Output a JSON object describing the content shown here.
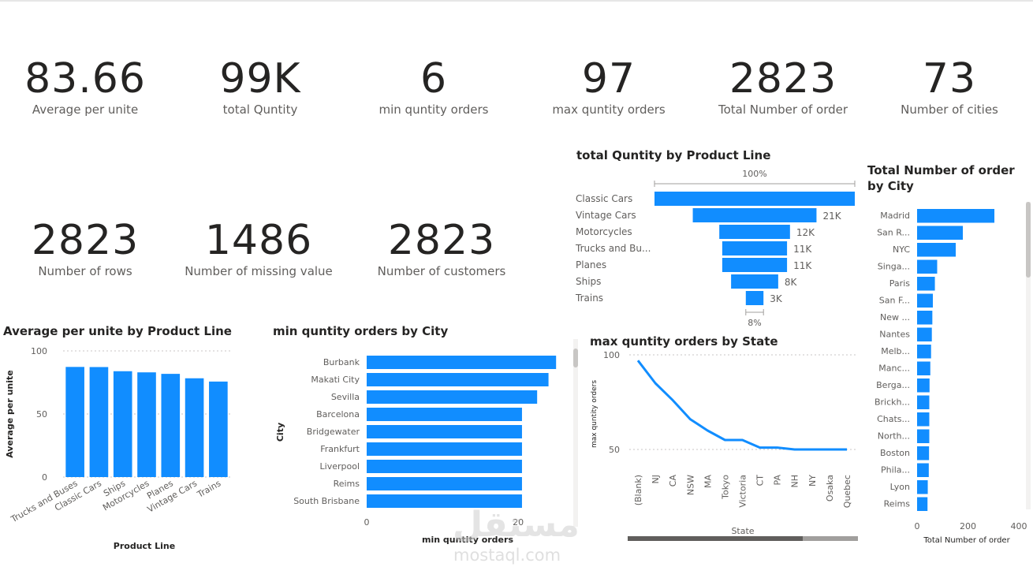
{
  "kpis": [
    {
      "value": "83.66",
      "label": "Average per unite"
    },
    {
      "value": "99K",
      "label": "total Quntity"
    },
    {
      "value": "6",
      "label": "min quntity orders"
    },
    {
      "value": "97",
      "label": "max quntity orders"
    },
    {
      "value": "2823",
      "label": "Total Number of order"
    },
    {
      "value": "73",
      "label": "Number of cities"
    },
    {
      "value": "2823",
      "label": "Number of rows"
    },
    {
      "value": "1486",
      "label": "Number of missing value"
    },
    {
      "value": "2823",
      "label": "Number of customers"
    }
  ],
  "watermark": {
    "arabic": "مستقل",
    "latin": "mostaql.com"
  },
  "chart_data": [
    {
      "id": "avg",
      "type": "bar",
      "title": "Average per unite by Product Line",
      "xlabel": "Product Line",
      "ylabel": "Average per unite",
      "categories": [
        "Trucks and Buses",
        "Classic Cars",
        "Ships",
        "Motorcycles",
        "Planes",
        "Vintage Cars",
        "Trains"
      ],
      "values": [
        87.3,
        87.2,
        83.9,
        83.0,
        81.8,
        78.3,
        75.7
      ],
      "ylim": [
        0,
        100
      ],
      "yticks": [
        "0",
        "50",
        "100"
      ],
      "grid": true
    },
    {
      "id": "mincity",
      "type": "bar",
      "orientation": "horizontal",
      "title": "min quntity orders by City",
      "xlabel": "min quntity orders",
      "ylabel": "City",
      "categories": [
        "Burbank",
        "Makati City",
        "Sevilla",
        "Barcelona",
        "Bridgewater",
        "Frankfurt",
        "Liverpool",
        "Reims",
        "South Brisbane"
      ],
      "values": [
        25,
        24,
        22.5,
        20.5,
        20.5,
        20.5,
        20.5,
        20.5,
        20.5
      ],
      "xlim": [
        0,
        25.5
      ],
      "xticks": [
        "0",
        "20"
      ]
    },
    {
      "id": "funnel",
      "type": "funnel",
      "title": "total Quntity by Product Line",
      "categories": [
        "Classic Cars",
        "Vintage Cars",
        "Motorcycles",
        "Trucks and Bu...",
        "Planes",
        "Ships",
        "Trains"
      ],
      "values": [
        34,
        21,
        12,
        11,
        11,
        8,
        3
      ],
      "data_labels": [
        "",
        "21K",
        "12K",
        "11K",
        "11K",
        "8K",
        "3K"
      ],
      "top_label": "100%",
      "bottom_label": "8%"
    },
    {
      "id": "state",
      "type": "line",
      "title": "max quntity orders by State",
      "xlabel": "State",
      "ylabel": "max quntity orders",
      "categories": [
        "(Blank)",
        "NJ",
        "CA",
        "NSW",
        "MA",
        "Tokyo",
        "Victoria",
        "CT",
        "PA",
        "NH",
        "NY",
        "Osaka",
        "Quebec"
      ],
      "values": [
        97,
        85,
        76,
        66,
        60,
        55,
        55,
        51,
        51,
        50,
        50,
        50,
        50
      ],
      "ylim": [
        30,
        100
      ],
      "yticks": [
        "50",
        "100"
      ],
      "grid": true
    },
    {
      "id": "citycount",
      "type": "bar",
      "orientation": "horizontal",
      "title": "Total Number of order by City",
      "xlabel": "Total Number of order",
      "categories": [
        "Madrid",
        "San R...",
        "NYC",
        "Singa...",
        "Paris",
        "San F...",
        "New ...",
        "Nantes",
        "Melb...",
        "Manc...",
        "Berga...",
        "Brickh...",
        "Chats...",
        "North...",
        "Boston",
        "Phila...",
        "Lyon",
        "Reims"
      ],
      "values": [
        304,
        180,
        152,
        79,
        70,
        62,
        60,
        58,
        55,
        52,
        49,
        48,
        48,
        48,
        47,
        46,
        42,
        41
      ],
      "xlim": [
        0,
        400
      ],
      "xticks": [
        "0",
        "200",
        "400"
      ]
    }
  ]
}
